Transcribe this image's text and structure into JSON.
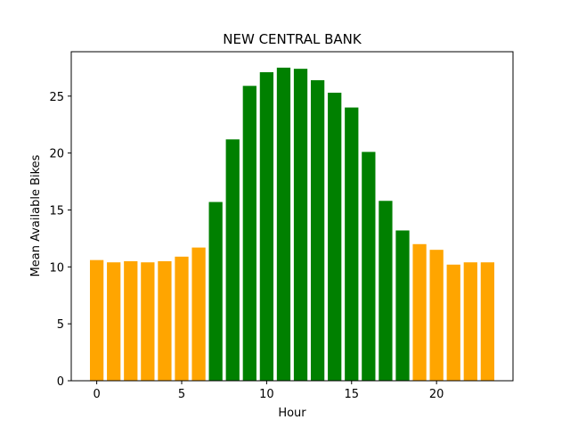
{
  "chart_data": {
    "type": "bar",
    "title": "NEW CENTRAL BANK",
    "xlabel": "Hour",
    "ylabel": "Mean Available Bikes",
    "x": [
      0,
      1,
      2,
      3,
      4,
      5,
      6,
      7,
      8,
      9,
      10,
      11,
      12,
      13,
      14,
      15,
      16,
      17,
      18,
      19,
      20,
      21,
      22,
      23
    ],
    "values": [
      10.6,
      10.4,
      10.5,
      10.4,
      10.5,
      10.9,
      11.7,
      15.7,
      21.2,
      25.9,
      27.1,
      27.5,
      27.4,
      26.4,
      25.3,
      24.0,
      20.1,
      15.8,
      13.2,
      12.0,
      11.5,
      10.2,
      10.4,
      10.4
    ],
    "colors": [
      "#ffa500",
      "#ffa500",
      "#ffa500",
      "#ffa500",
      "#ffa500",
      "#ffa500",
      "#ffa500",
      "#008000",
      "#008000",
      "#008000",
      "#008000",
      "#008000",
      "#008000",
      "#008000",
      "#008000",
      "#008000",
      "#008000",
      "#008000",
      "#008000",
      "#ffa500",
      "#ffa500",
      "#ffa500",
      "#ffa500",
      "#ffa500"
    ],
    "xticks": [
      "0",
      "5",
      "10",
      "15",
      "20"
    ],
    "yticks": [
      "0",
      "5",
      "10",
      "15",
      "20",
      "25"
    ],
    "xlim": [
      -1.5,
      24.5
    ],
    "ylim": [
      0,
      28.9
    ],
    "grid": false,
    "legend": "none"
  }
}
